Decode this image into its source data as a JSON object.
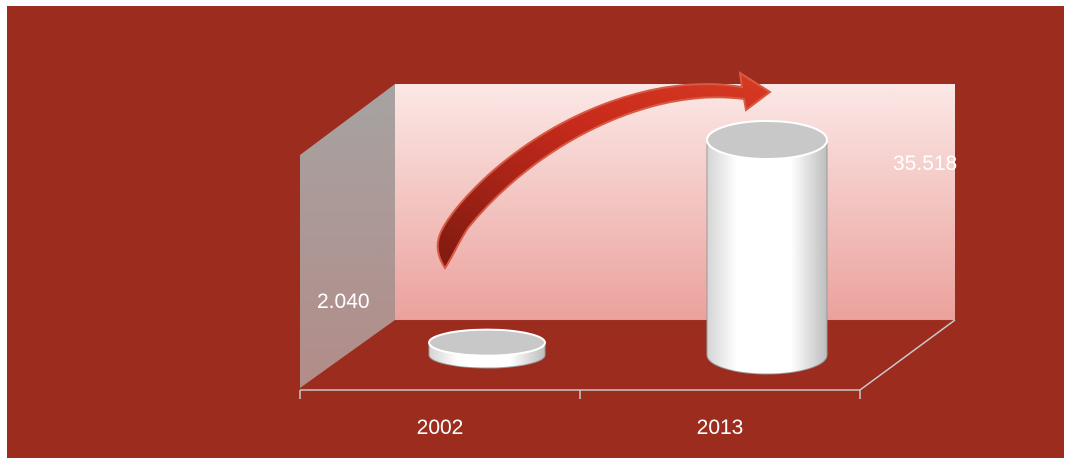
{
  "chart_data": {
    "type": "bar",
    "style": "3d-cylinder",
    "categories": [
      "2002",
      "2013"
    ],
    "values": [
      2.04,
      35.518
    ],
    "data_labels": [
      "2.040",
      "35.518"
    ],
    "title": "",
    "xlabel": "",
    "ylabel": "",
    "ylim": [
      0,
      40
    ],
    "grid": false,
    "legend": "none",
    "annotation": "curved arrow from 2002 to 2013"
  },
  "colors": {
    "background": "#9b2c1e",
    "back_wall_top": "#fbe8e6",
    "back_wall_bottom": "#eba19c",
    "side_wall": "#ad8a86",
    "bar_fill": "#ffffff",
    "bar_top": "#c8c8c8",
    "arrow": "#c0281a",
    "label": "#ffffff"
  }
}
